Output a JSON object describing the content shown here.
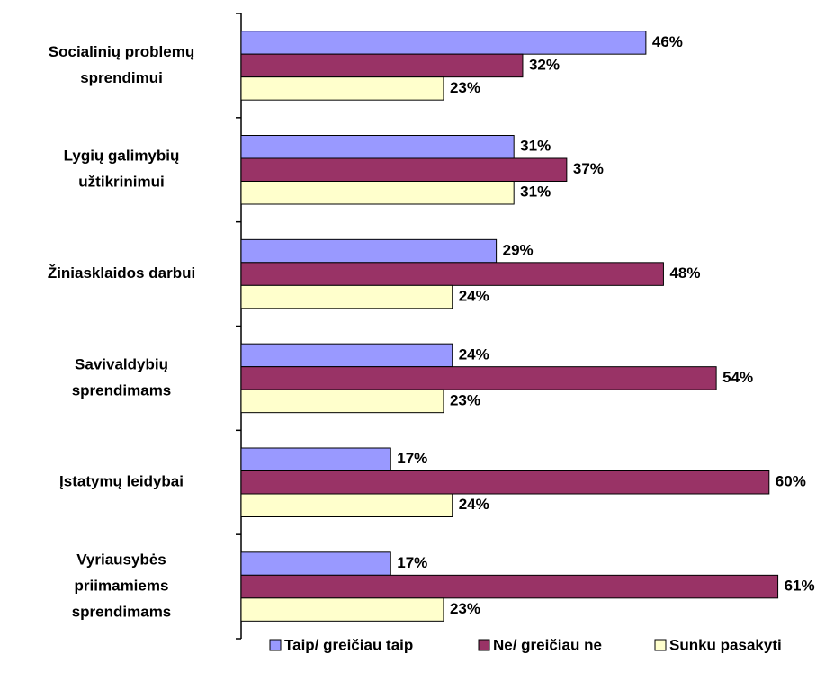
{
  "chart_data": {
    "type": "bar",
    "orientation": "horizontal",
    "categories": [
      [
        "Socialinių problemų",
        "sprendimui"
      ],
      [
        "Lygių galimybių",
        "užtikrinimui"
      ],
      [
        "Žiniasklaidos darbui"
      ],
      [
        "Savivaldybių",
        "sprendimams"
      ],
      [
        "Įstatymų leidybai"
      ],
      [
        "Vyriausybės",
        "priimamiems",
        "sprendimams"
      ]
    ],
    "series": [
      {
        "name": "Taip/ greičiau taip",
        "color": "#9999ff",
        "values": [
          46,
          31,
          29,
          24,
          17,
          17
        ],
        "value_labels": [
          "46%",
          "31%",
          "29%",
          "24%",
          "17%",
          "17%"
        ]
      },
      {
        "name": "Ne/ greičiau ne",
        "color": "#993366",
        "values": [
          32,
          37,
          48,
          54,
          60,
          61
        ],
        "value_labels": [
          "32%",
          "37%",
          "48%",
          "54%",
          "60%",
          "61%"
        ]
      },
      {
        "name": "Sunku pasakyti",
        "color": "#ffffcc",
        "values": [
          23,
          31,
          24,
          23,
          24,
          23
        ],
        "value_labels": [
          "23%",
          "31%",
          "24%",
          "23%",
          "24%",
          "23%"
        ]
      }
    ],
    "legend": "bottom"
  }
}
